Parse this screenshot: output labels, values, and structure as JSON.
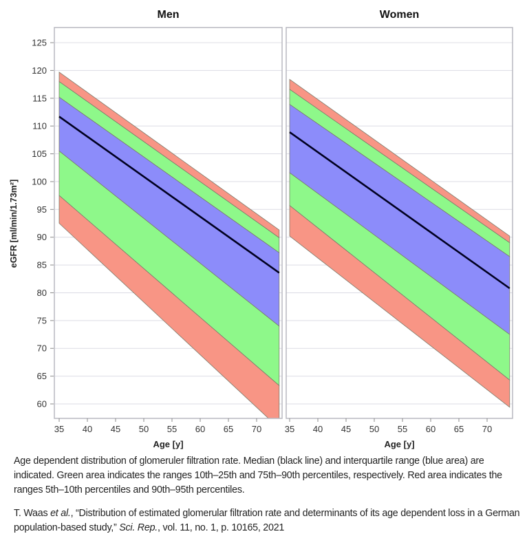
{
  "chart_data": [
    {
      "type": "area",
      "title": "Men",
      "xlabel": "Age [y]",
      "ylabel": "eGFR [ml/min/1.73m²]",
      "xlim": [
        35,
        74
      ],
      "ylim": [
        57.4,
        127.7
      ],
      "xticks": [
        35,
        40,
        45,
        50,
        55,
        60,
        65,
        70
      ],
      "yticks": [
        60,
        65,
        70,
        75,
        80,
        85,
        90,
        95,
        100,
        105,
        110,
        115,
        120,
        125
      ],
      "grid": true,
      "x": [
        35,
        74
      ],
      "percentiles": {
        "p5": [
          92.5,
          55.6
        ],
        "p10": [
          97.5,
          63.3
        ],
        "p25": [
          105.5,
          74.0
        ],
        "p50": [
          111.7,
          83.6
        ],
        "p75": [
          115.2,
          87.2
        ],
        "p90": [
          118.0,
          89.9
        ],
        "p95": [
          119.7,
          91.3
        ]
      }
    },
    {
      "type": "area",
      "title": "Women",
      "xlabel": "Age [y]",
      "xlim": [
        35,
        74
      ],
      "ylim": [
        57.4,
        127.7
      ],
      "xticks": [
        35,
        40,
        45,
        50,
        55,
        60,
        65,
        70
      ],
      "grid": true,
      "x": [
        35,
        74
      ],
      "percentiles": {
        "p5": [
          90.2,
          59.4
        ],
        "p10": [
          95.7,
          64.3
        ],
        "p25": [
          101.6,
          72.5
        ],
        "p50": [
          108.9,
          80.8
        ],
        "p75": [
          113.9,
          86.5
        ],
        "p90": [
          116.6,
          89.0
        ],
        "p95": [
          118.4,
          90.2
        ]
      }
    }
  ],
  "colors": {
    "red_band": "#f89585",
    "green_band": "#8ef88a",
    "blue_band": "#8c8cfa",
    "median": "#000020"
  },
  "caption": "Age dependent distribution of glomeruler filtration rate. Median (black line) and interquartile range (blue area) are indicated. Green area indicates the ranges 10th–25th and 75th–90th percentiles, respectively. Red area indicates the ranges 5th–10th percentiles and 90th–95th percentiles.",
  "citation": {
    "author": "T. Waas ",
    "etal": "et al.",
    "title": ", “Distribution of estimated glomerular filtration rate and determinants of its age dependent loss in a German population-based study,” ",
    "journal": "Sci. Rep.",
    "rest": ", vol. 11, no. 1, p. 10165, 2021"
  }
}
